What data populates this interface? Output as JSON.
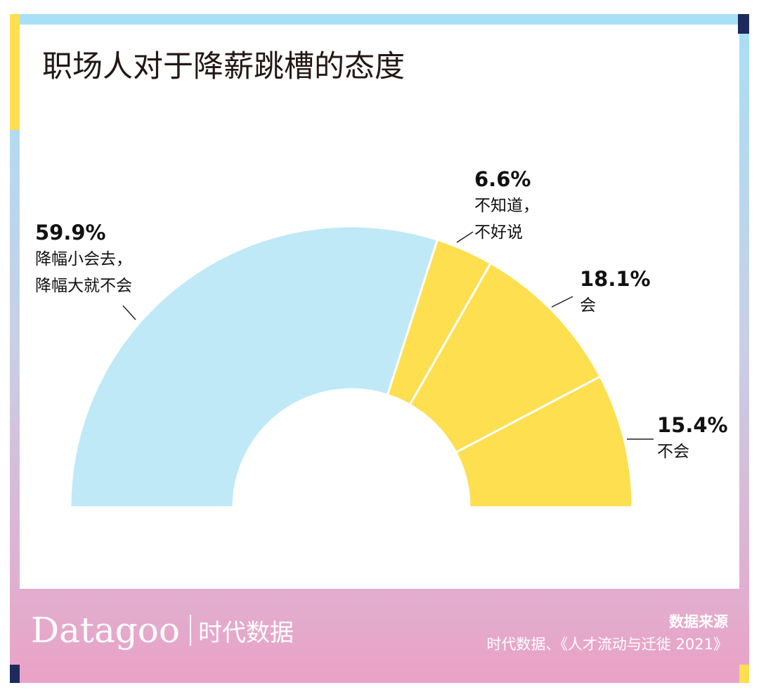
{
  "chart_data": {
    "type": "half-donut",
    "title": "职场人对于降薪跳槽的态度",
    "categories": [
      "降幅小会去，\n降幅大就不会",
      "不知道，\n不好说",
      "会",
      "不会"
    ],
    "values": [
      59.9,
      6.6,
      18.1,
      15.4
    ],
    "value_labels": [
      "59.9%",
      "6.6%",
      "18.1%",
      "15.4%"
    ],
    "colors": [
      "#bfe9f7",
      "#fddf4f",
      "#fddf4f",
      "#fddf4f"
    ],
    "source_title": "数据来源",
    "source": "时代数据、《人才流动与迁徙 2021》"
  },
  "brand": {
    "name": "Datagoo",
    "name_cn": "时代数据"
  }
}
